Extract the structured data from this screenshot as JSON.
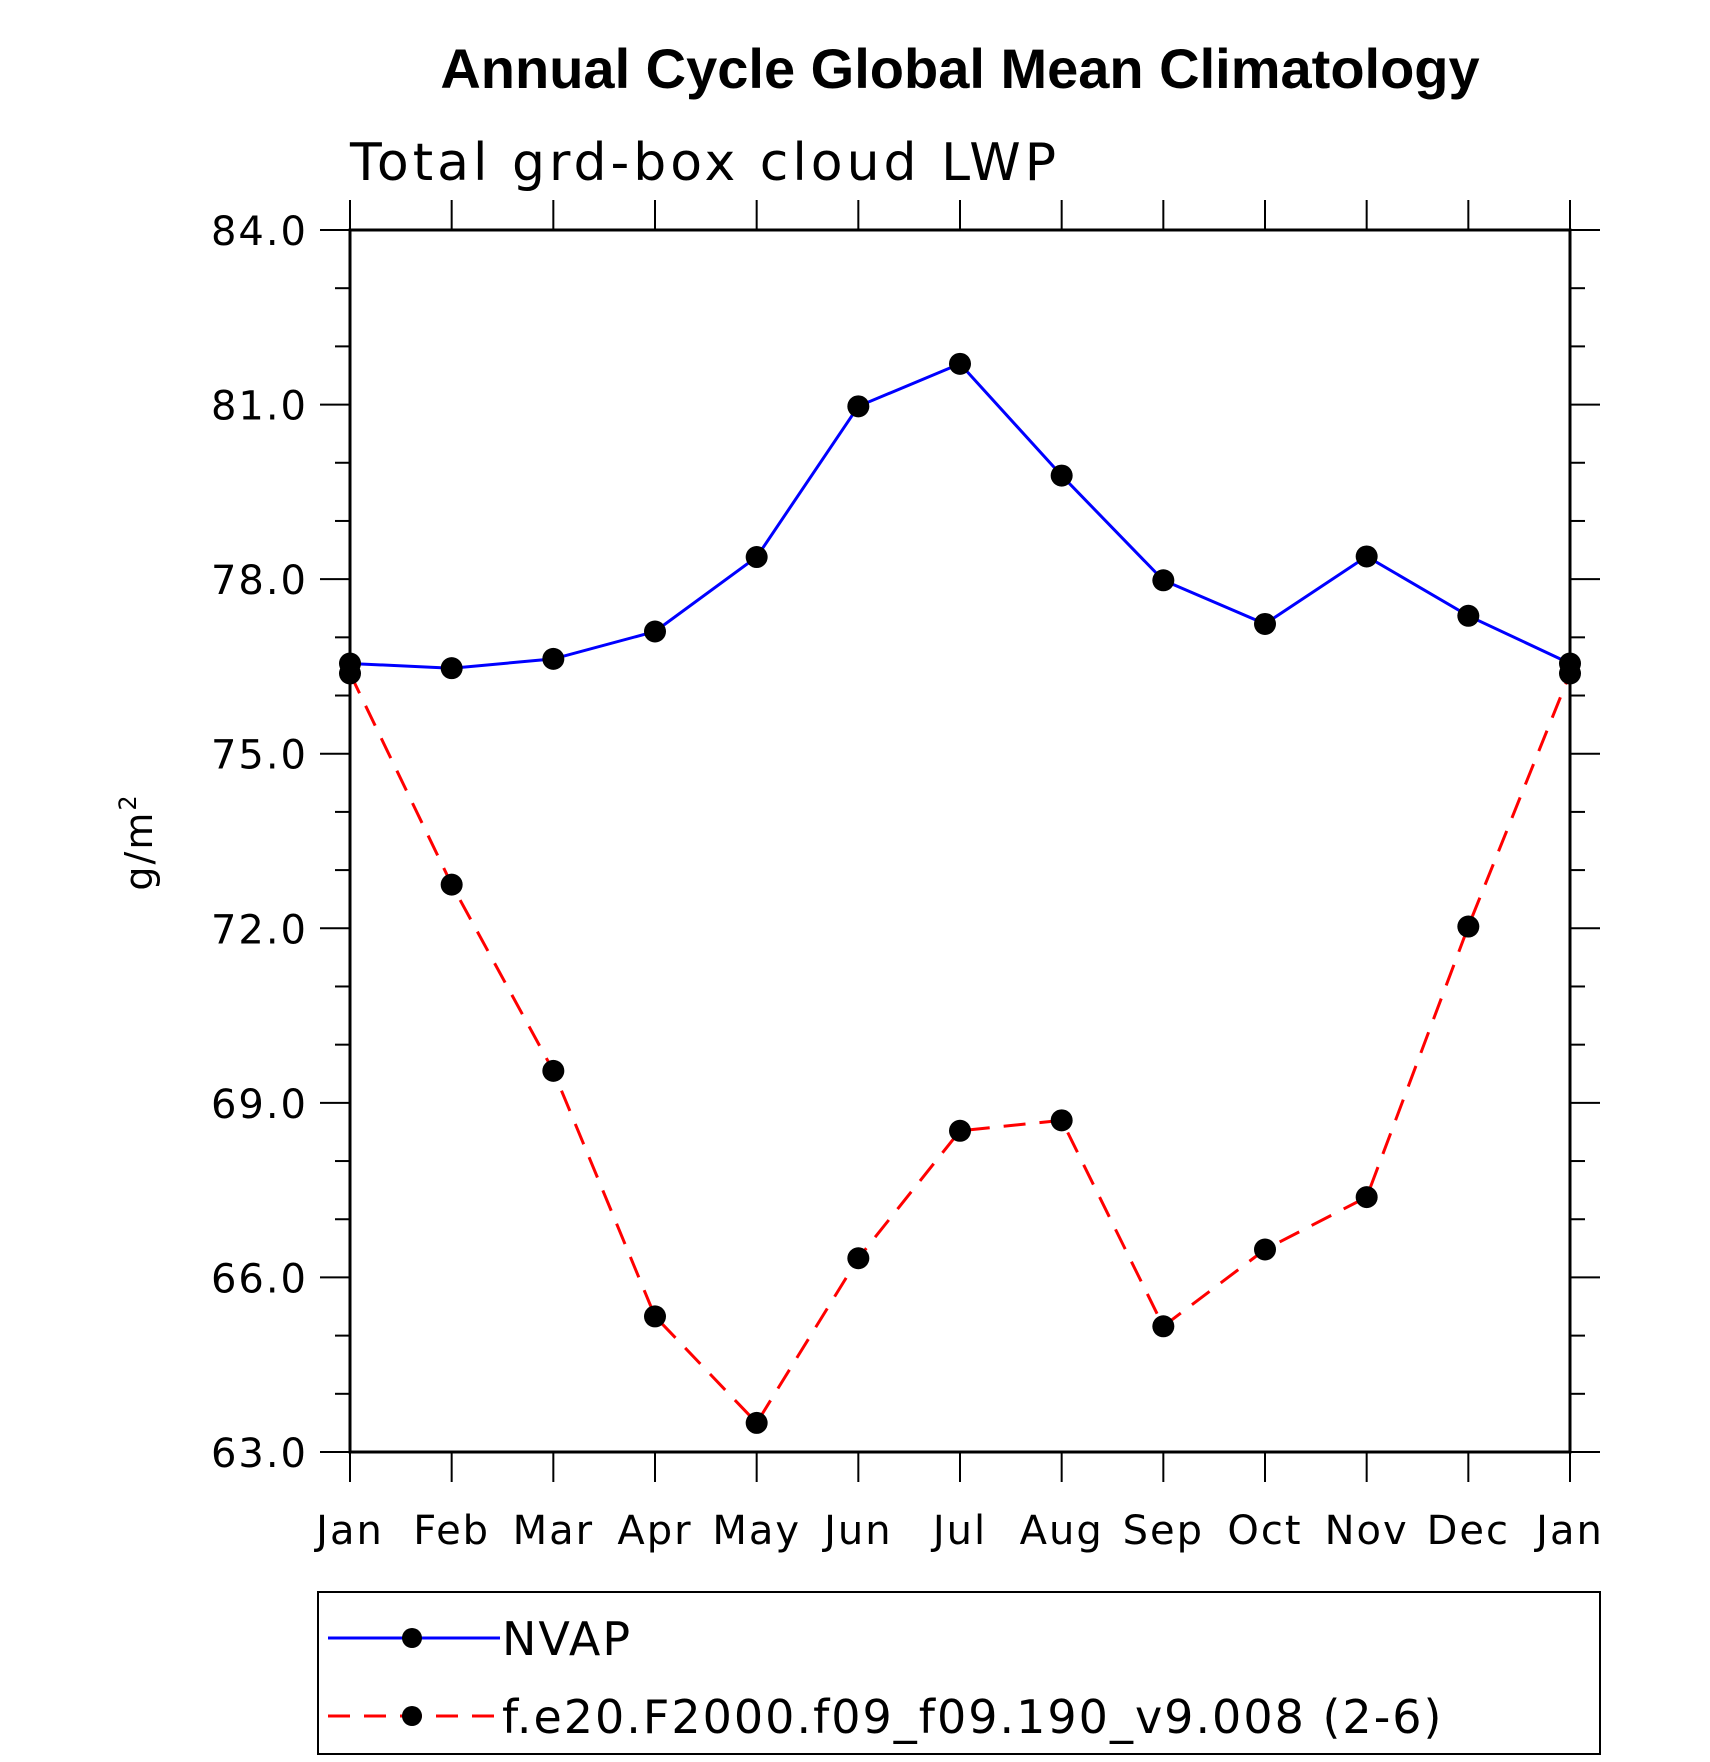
{
  "chart_data": {
    "type": "line",
    "title": "Annual Cycle Global Mean Climatology",
    "subtitle": "Total grd-box cloud LWP",
    "ylabel_base": "g/m",
    "ylabel_sup": "2",
    "xlabel": "",
    "categories": [
      "Jan",
      "Feb",
      "Mar",
      "Apr",
      "May",
      "Jun",
      "Jul",
      "Aug",
      "Sep",
      "Oct",
      "Nov",
      "Dec",
      "Jan"
    ],
    "ylim": [
      63.0,
      84.0
    ],
    "yticks": [
      "63.0",
      "66.0",
      "69.0",
      "72.0",
      "75.0",
      "78.0",
      "81.0",
      "84.0"
    ],
    "grid": false,
    "legend_position": "bottom",
    "series": [
      {
        "name": "NVAP",
        "color": "#0000ff",
        "dash": "solid",
        "marker": "filled-circle",
        "values": [
          76.55,
          76.47,
          76.63,
          77.1,
          78.38,
          80.97,
          81.7,
          79.78,
          77.98,
          77.23,
          78.39,
          77.37,
          76.55
        ]
      },
      {
        "name": "f.e20.F2000.f09_f09.190_v9.008 (2-6)",
        "color": "#ff0000",
        "dash": "dashed",
        "marker": "filled-circle",
        "values": [
          76.38,
          72.75,
          69.55,
          65.33,
          63.5,
          66.33,
          68.52,
          68.7,
          65.16,
          66.48,
          67.38,
          72.03,
          76.38
        ]
      }
    ]
  }
}
